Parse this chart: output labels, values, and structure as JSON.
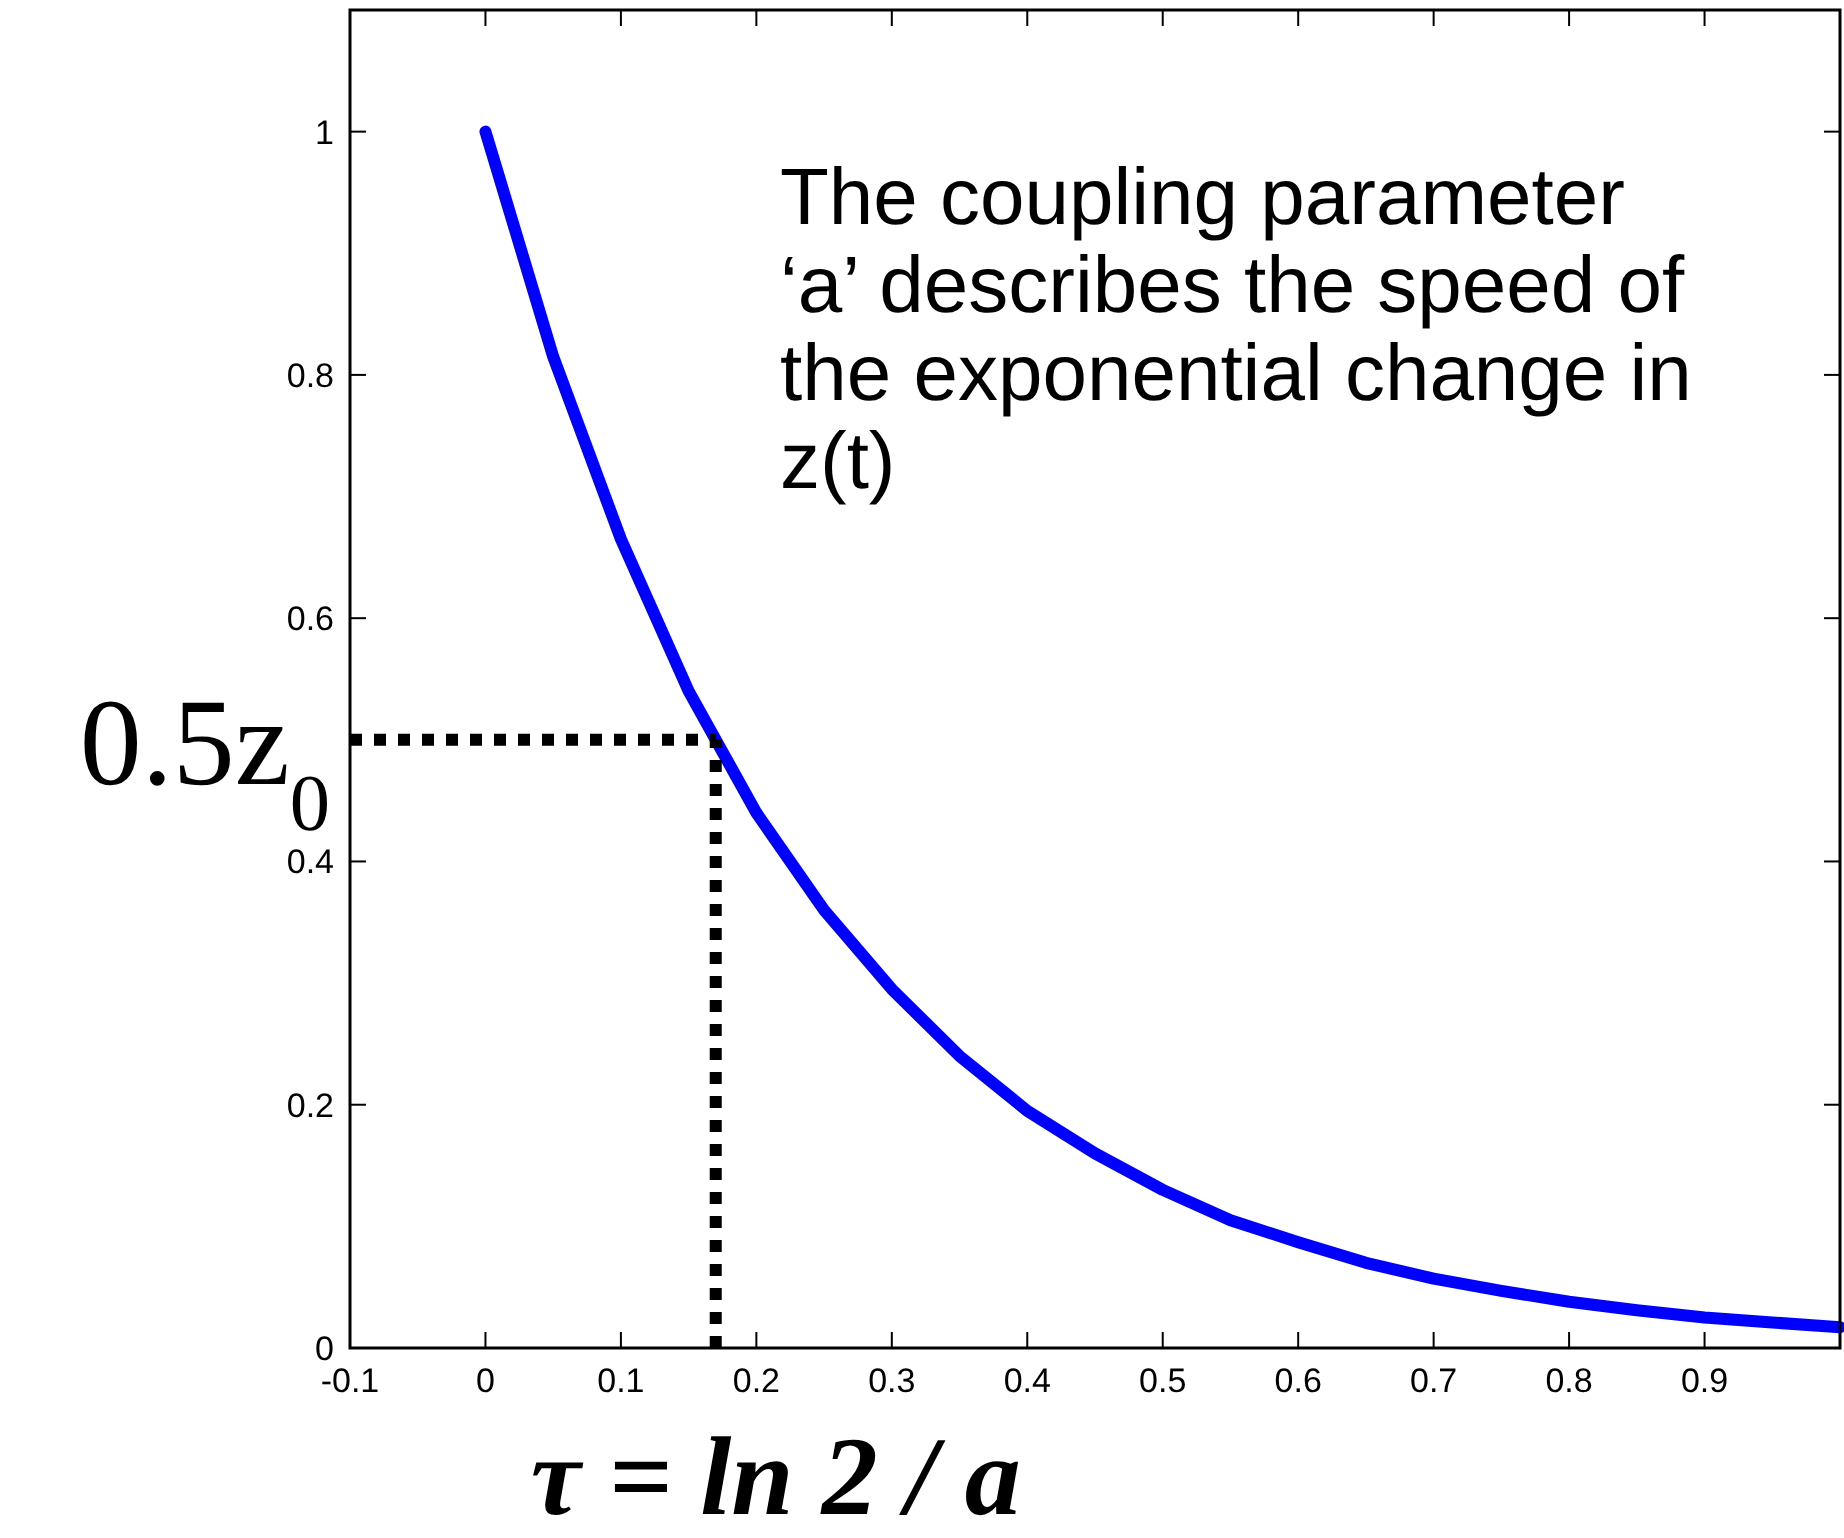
{
  "chart_data": {
    "type": "line",
    "x": [
      0,
      0.05,
      0.1,
      0.15,
      0.2,
      0.25,
      0.3,
      0.35,
      0.4,
      0.45,
      0.5,
      0.55,
      0.6,
      0.65,
      0.7,
      0.75,
      0.8,
      0.85,
      0.9,
      0.95,
      1.0
    ],
    "series": [
      {
        "color": "#0000ff",
        "values": [
          1,
          0.815,
          0.665,
          0.54,
          0.44,
          0.36,
          0.295,
          0.24,
          0.195,
          0.16,
          0.13,
          0.105,
          0.087,
          0.07,
          0.057,
          0.047,
          0.038,
          0.031,
          0.025,
          0.021,
          0.017
        ]
      }
    ],
    "xlim": [
      -0.1,
      1.0
    ],
    "ylim": [
      0,
      1.1
    ],
    "xticks": [
      -0.1,
      0,
      0.1,
      0.2,
      0.3,
      0.4,
      0.5,
      0.6,
      0.7,
      0.8,
      0.9
    ],
    "yticks": [
      0,
      0.2,
      0.4,
      0.6,
      0.8,
      1
    ],
    "ref_lines": [
      {
        "axis": "y",
        "value": 0.5,
        "label": "0.5z$_{0}$",
        "line_style": "dotted",
        "color": "#000000"
      },
      {
        "axis": "x",
        "value": 0.17,
        "label": "τ = ln 2 / a",
        "line_style": "dotted",
        "color": "#000000"
      }
    ],
    "annotations": [
      "The coupling parameter ‘a’ describes the speed of the exponential change in z(t)"
    ],
    "grid": false,
    "marker": "none",
    "line_style": "solid"
  }
}
